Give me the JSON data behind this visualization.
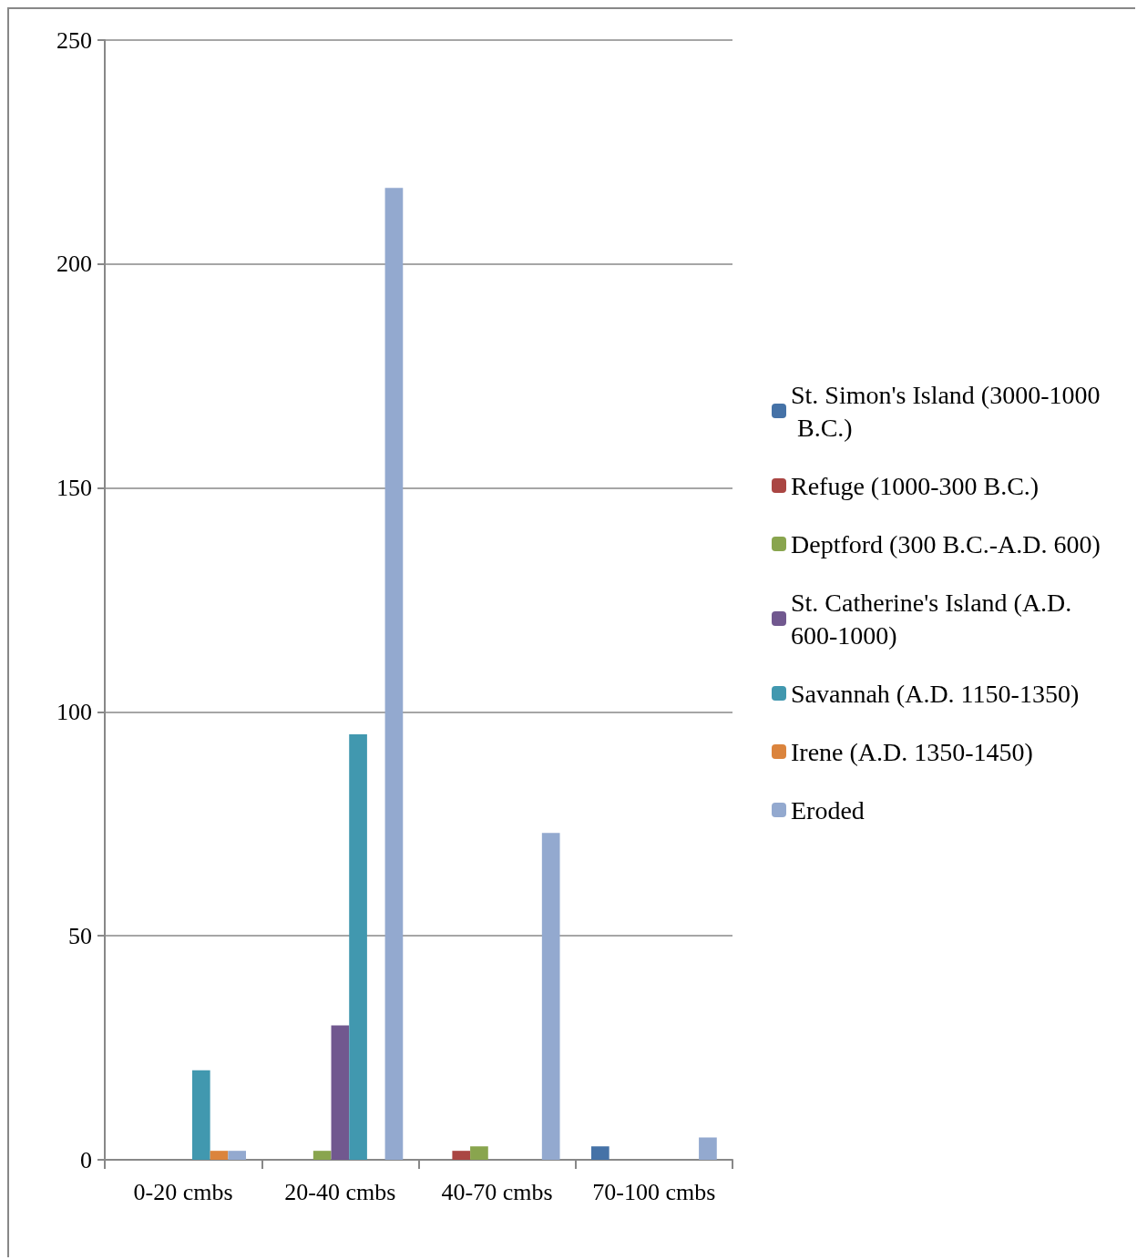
{
  "chart_data": {
    "type": "bar",
    "categories": [
      "0-20 cmbs",
      "20-40 cmbs",
      "40-70 cmbs",
      "70-100 cmbs"
    ],
    "series": [
      {
        "name": "St. Simon's Island (3000-1000 B.C.)",
        "color": "#4572a7",
        "values": [
          null,
          null,
          null,
          3
        ]
      },
      {
        "name": "Refuge (1000-300 B.C.)",
        "color": "#aa4643",
        "values": [
          null,
          null,
          2,
          null
        ]
      },
      {
        "name": "Deptford (300 B.C.-A.D. 600)",
        "color": "#89a54e",
        "values": [
          null,
          2,
          3,
          null
        ]
      },
      {
        "name": "St. Catherine's Island (A.D. 600-1000)",
        "color": "#71588f",
        "values": [
          null,
          30,
          null,
          null
        ]
      },
      {
        "name": "Savannah (A.D. 1150-1350)",
        "color": "#4198af",
        "values": [
          20,
          95,
          null,
          null
        ]
      },
      {
        "name": "Irene (A.D. 1350-1450)",
        "color": "#db843d",
        "values": [
          2,
          null,
          null,
          null
        ]
      },
      {
        "name": "Eroded",
        "color": "#93a9cf",
        "values": [
          2,
          217,
          73,
          5
        ]
      }
    ],
    "ylim": [
      0,
      250
    ],
    "yticks": [
      0,
      50,
      100,
      150,
      200,
      250
    ],
    "grid": "y",
    "legend": "right"
  }
}
